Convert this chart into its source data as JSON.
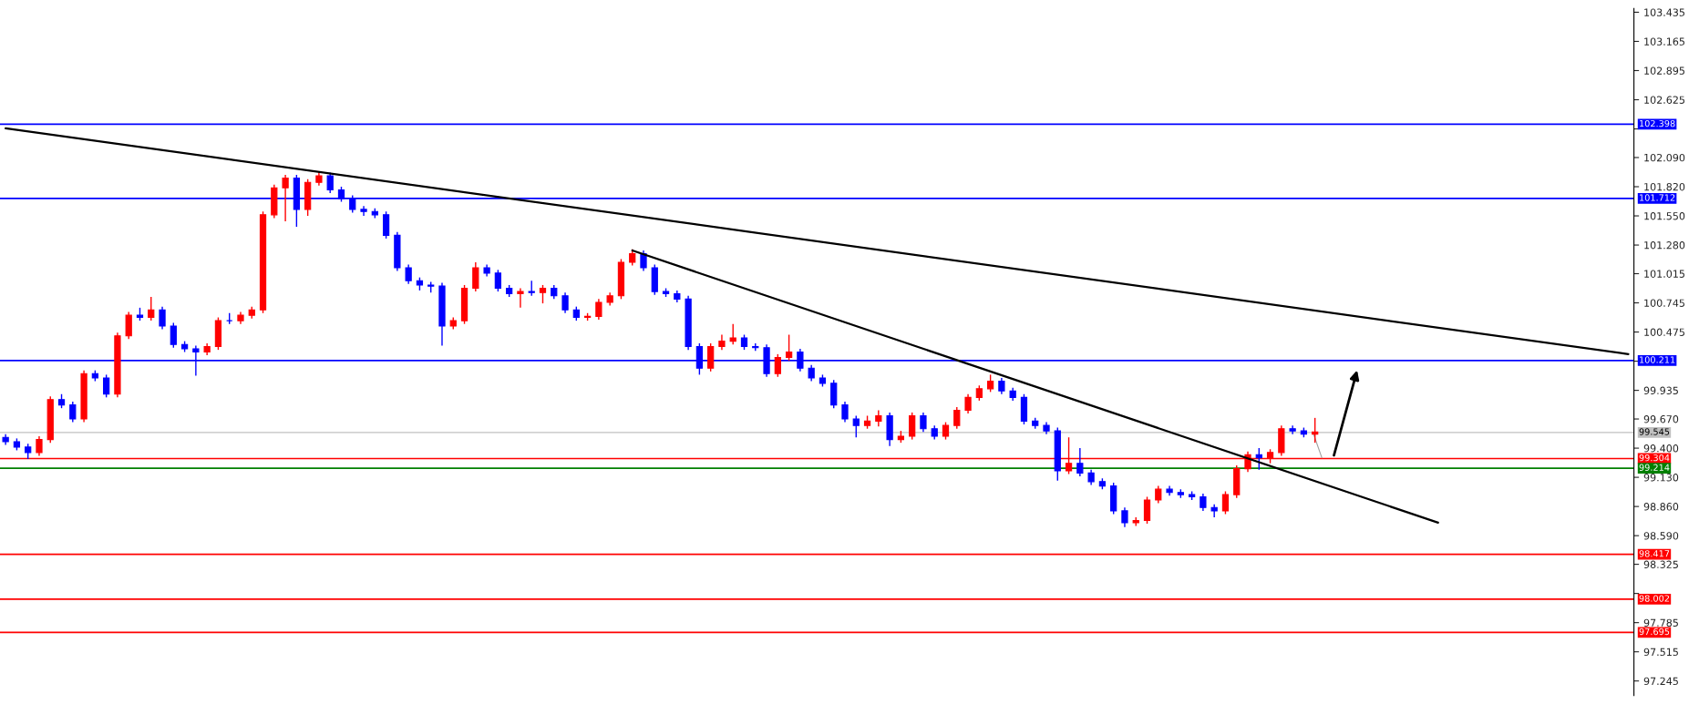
{
  "chart_data": {
    "type": "candlestick",
    "categories": [
      null,
      null,
      null,
      null,
      null,
      null,
      null,
      null,
      null,
      null,
      null,
      null,
      null,
      null,
      null,
      null,
      null,
      null,
      null,
      null,
      null,
      null,
      null,
      null,
      null,
      null,
      null,
      null,
      null,
      null,
      null,
      null,
      null,
      null,
      null,
      null,
      null,
      null,
      null,
      null,
      null,
      null,
      null,
      null,
      null,
      null,
      null,
      null,
      null,
      null,
      null,
      null,
      null,
      null,
      null,
      null,
      null,
      null,
      null,
      null,
      null,
      null,
      null,
      null,
      null,
      null,
      null,
      null,
      null,
      null,
      null,
      null,
      null,
      null,
      null,
      null,
      null,
      null,
      null,
      null,
      null,
      null,
      null,
      null,
      null,
      null,
      null,
      null,
      null,
      null,
      null,
      null,
      null,
      null,
      null,
      null,
      null,
      null,
      null,
      null,
      null,
      null,
      null,
      null,
      null,
      null,
      null,
      null,
      null,
      null,
      null,
      null,
      null,
      null,
      null,
      null,
      null,
      null,
      null,
      null,
      null,
      null,
      null,
      null,
      null,
      null,
      null,
      null,
      null,
      null,
      null,
      null,
      null,
      null,
      null,
      null,
      null,
      null,
      null,
      null,
      null,
      null,
      null,
      null,
      null,
      null
    ],
    "ohlc": [
      [
        99.5,
        99.53,
        99.43,
        99.46
      ],
      [
        99.46,
        99.49,
        99.38,
        99.41
      ],
      [
        99.41,
        99.44,
        99.3,
        99.36
      ],
      [
        99.36,
        99.51,
        99.33,
        99.48
      ],
      [
        99.48,
        99.88,
        99.45,
        99.85
      ],
      [
        99.85,
        99.9,
        99.77,
        99.8
      ],
      [
        99.8,
        99.83,
        99.64,
        99.67
      ],
      [
        99.67,
        100.12,
        99.64,
        100.09
      ],
      [
        100.09,
        100.12,
        100.02,
        100.05
      ],
      [
        100.05,
        100.08,
        99.87,
        99.9
      ],
      [
        99.9,
        100.47,
        99.87,
        100.44
      ],
      [
        100.44,
        100.66,
        100.41,
        100.63
      ],
      [
        100.63,
        100.7,
        100.58,
        100.61
      ],
      [
        100.61,
        100.8,
        100.58,
        100.68
      ],
      [
        100.68,
        100.71,
        100.5,
        100.53
      ],
      [
        100.53,
        100.56,
        100.33,
        100.36
      ],
      [
        100.36,
        100.39,
        100.29,
        100.32
      ],
      [
        100.32,
        100.35,
        100.07,
        100.29
      ],
      [
        100.29,
        100.37,
        100.26,
        100.34
      ],
      [
        100.34,
        100.61,
        100.31,
        100.58
      ],
      [
        100.58,
        100.65,
        100.55,
        100.58
      ],
      [
        100.58,
        100.66,
        100.55,
        100.63
      ],
      [
        100.63,
        100.71,
        100.6,
        100.68
      ],
      [
        100.68,
        101.59,
        100.65,
        101.56
      ],
      [
        101.56,
        101.84,
        101.53,
        101.81
      ],
      [
        101.81,
        101.93,
        101.5,
        101.9
      ],
      [
        101.9,
        101.93,
        101.45,
        101.61
      ],
      [
        101.61,
        101.89,
        101.55,
        101.86
      ],
      [
        101.86,
        101.96,
        101.83,
        101.92
      ],
      [
        101.92,
        101.95,
        101.76,
        101.79
      ],
      [
        101.79,
        101.82,
        101.68,
        101.71
      ],
      [
        101.71,
        101.74,
        101.58,
        101.61
      ],
      [
        101.61,
        101.64,
        101.55,
        101.59
      ],
      [
        101.59,
        101.62,
        101.53,
        101.56
      ],
      [
        101.56,
        101.59,
        101.34,
        101.37
      ],
      [
        101.37,
        101.4,
        101.04,
        101.07
      ],
      [
        101.07,
        101.1,
        100.92,
        100.95
      ],
      [
        100.95,
        100.98,
        100.86,
        100.91
      ],
      [
        100.91,
        100.94,
        100.84,
        100.9
      ],
      [
        100.9,
        100.93,
        100.35,
        100.53
      ],
      [
        100.53,
        100.61,
        100.5,
        100.58
      ],
      [
        100.58,
        100.91,
        100.55,
        100.88
      ],
      [
        100.88,
        101.12,
        100.85,
        101.07
      ],
      [
        101.07,
        101.1,
        100.99,
        101.02
      ],
      [
        101.02,
        101.05,
        100.85,
        100.88
      ],
      [
        100.88,
        100.91,
        100.8,
        100.83
      ],
      [
        100.83,
        100.88,
        100.7,
        100.85
      ],
      [
        100.85,
        100.95,
        100.81,
        100.84
      ],
      [
        100.84,
        100.91,
        100.74,
        100.88
      ],
      [
        100.88,
        100.91,
        100.78,
        100.81
      ],
      [
        100.81,
        100.84,
        100.65,
        100.68
      ],
      [
        100.68,
        100.71,
        100.58,
        100.61
      ],
      [
        100.61,
        100.65,
        100.58,
        100.62
      ],
      [
        100.62,
        100.78,
        100.59,
        100.75
      ],
      [
        100.75,
        100.84,
        100.72,
        100.81
      ],
      [
        100.81,
        101.15,
        100.78,
        101.12
      ],
      [
        101.12,
        101.24,
        101.09,
        101.2
      ],
      [
        101.2,
        101.23,
        101.04,
        101.07
      ],
      [
        101.07,
        101.1,
        100.82,
        100.85
      ],
      [
        100.85,
        100.88,
        100.8,
        100.83
      ],
      [
        100.83,
        100.86,
        100.75,
        100.78
      ],
      [
        100.78,
        100.81,
        100.31,
        100.34
      ],
      [
        100.34,
        100.37,
        100.08,
        100.14
      ],
      [
        100.14,
        100.37,
        100.11,
        100.34
      ],
      [
        100.34,
        100.45,
        100.31,
        100.39
      ],
      [
        100.39,
        100.55,
        100.36,
        100.42
      ],
      [
        100.42,
        100.45,
        100.31,
        100.34
      ],
      [
        100.34,
        100.37,
        100.3,
        100.33
      ],
      [
        100.33,
        100.36,
        100.06,
        100.09
      ],
      [
        100.09,
        100.27,
        100.06,
        100.24
      ],
      [
        100.24,
        100.45,
        100.21,
        100.29
      ],
      [
        100.29,
        100.32,
        100.11,
        100.14
      ],
      [
        100.14,
        100.17,
        100.02,
        100.05
      ],
      [
        100.05,
        100.08,
        99.97,
        100.0
      ],
      [
        100.0,
        100.03,
        99.77,
        99.8
      ],
      [
        99.8,
        99.83,
        99.64,
        99.67
      ],
      [
        99.67,
        99.7,
        99.5,
        99.61
      ],
      [
        99.61,
        99.7,
        99.58,
        99.65
      ],
      [
        99.65,
        99.75,
        99.6,
        99.7
      ],
      [
        99.7,
        99.73,
        99.42,
        99.48
      ],
      [
        99.48,
        99.56,
        99.45,
        99.51
      ],
      [
        99.51,
        99.73,
        99.48,
        99.7
      ],
      [
        99.7,
        99.73,
        99.55,
        99.58
      ],
      [
        99.58,
        99.61,
        99.48,
        99.51
      ],
      [
        99.51,
        99.64,
        99.48,
        99.61
      ],
      [
        99.61,
        99.78,
        99.58,
        99.75
      ],
      [
        99.75,
        99.9,
        99.72,
        99.87
      ],
      [
        99.87,
        99.98,
        99.84,
        99.95
      ],
      [
        99.95,
        100.08,
        99.92,
        100.02
      ],
      [
        100.02,
        100.05,
        99.9,
        99.93
      ],
      [
        99.93,
        99.96,
        99.84,
        99.87
      ],
      [
        99.87,
        99.9,
        99.62,
        99.65
      ],
      [
        99.65,
        99.68,
        99.58,
        99.61
      ],
      [
        99.61,
        99.64,
        99.53,
        99.56
      ],
      [
        99.56,
        99.59,
        99.1,
        99.19
      ],
      [
        99.19,
        99.5,
        99.16,
        99.26
      ],
      [
        99.26,
        99.4,
        99.14,
        99.17
      ],
      [
        99.17,
        99.2,
        99.06,
        99.09
      ],
      [
        99.09,
        99.12,
        99.02,
        99.05
      ],
      [
        99.05,
        99.08,
        98.79,
        98.82
      ],
      [
        98.82,
        98.85,
        98.67,
        98.71
      ],
      [
        98.71,
        98.76,
        98.68,
        98.73
      ],
      [
        98.73,
        98.95,
        98.7,
        98.92
      ],
      [
        98.92,
        99.05,
        98.89,
        99.02
      ],
      [
        99.02,
        99.05,
        98.96,
        98.99
      ],
      [
        98.99,
        99.02,
        98.94,
        98.97
      ],
      [
        98.97,
        99.0,
        98.92,
        98.95
      ],
      [
        98.95,
        98.98,
        98.82,
        98.85
      ],
      [
        98.85,
        98.88,
        98.76,
        98.82
      ],
      [
        98.82,
        99.0,
        98.79,
        98.97
      ],
      [
        98.97,
        99.24,
        98.94,
        99.21
      ],
      [
        99.21,
        99.37,
        99.18,
        99.34
      ],
      [
        99.34,
        99.4,
        99.2,
        99.31
      ],
      [
        99.31,
        99.39,
        99.26,
        99.36
      ],
      [
        99.36,
        99.61,
        99.33,
        99.58
      ],
      [
        99.58,
        99.61,
        99.53,
        99.56
      ],
      [
        99.56,
        99.59,
        99.5,
        99.53
      ],
      [
        99.53,
        99.68,
        99.45,
        99.55
      ],
      null,
      null,
      null,
      null,
      null,
      null,
      null,
      null,
      null,
      null,
      null,
      null,
      null,
      null,
      null,
      null,
      null,
      null,
      null,
      null,
      null,
      null,
      null,
      null,
      null,
      null,
      null,
      null
    ],
    "colors": [
      "#0000ff",
      "#0000ff",
      "#0000ff",
      "#ff0000",
      "#ff0000",
      "#0000ff",
      "#0000ff",
      "#ff0000",
      "#0000ff",
      "#0000ff",
      "#ff0000",
      "#ff0000",
      "#0000ff",
      "#ff0000",
      "#0000ff",
      "#0000ff",
      "#0000ff",
      "#0000ff",
      "#ff0000",
      "#ff0000",
      "#0000ff",
      "#ff0000",
      "#ff0000",
      "#ff0000",
      "#ff0000",
      "#ff0000",
      "#0000ff",
      "#ff0000",
      "#ff0000",
      "#0000ff",
      "#0000ff",
      "#0000ff",
      "#0000ff",
      "#0000ff",
      "#0000ff",
      "#0000ff",
      "#0000ff",
      "#0000ff",
      "#0000ff",
      "#0000ff",
      "#ff0000",
      "#ff0000",
      "#ff0000",
      "#0000ff",
      "#0000ff",
      "#0000ff",
      "#ff0000",
      "#0000ff",
      "#ff0000",
      "#0000ff",
      "#0000ff",
      "#0000ff",
      "#ff0000",
      "#ff0000",
      "#ff0000",
      "#ff0000",
      "#ff0000",
      "#0000ff",
      "#0000ff",
      "#0000ff",
      "#0000ff",
      "#0000ff",
      "#0000ff",
      "#ff0000",
      "#ff0000",
      "#ff0000",
      "#0000ff",
      "#0000ff",
      "#0000ff",
      "#ff0000",
      "#ff0000",
      "#0000ff",
      "#0000ff",
      "#0000ff",
      "#0000ff",
      "#0000ff",
      "#0000ff",
      "#ff0000",
      "#ff0000",
      "#0000ff",
      "#ff0000",
      "#ff0000",
      "#0000ff",
      "#0000ff",
      "#ff0000",
      "#ff0000",
      "#ff0000",
      "#ff0000",
      "#ff0000",
      "#0000ff",
      "#0000ff",
      "#0000ff",
      "#0000ff",
      "#0000ff",
      "#0000ff",
      "#ff0000",
      "#0000ff",
      "#0000ff",
      "#0000ff",
      "#0000ff",
      "#0000ff",
      "#ff0000",
      "#ff0000",
      "#ff0000",
      "#0000ff",
      "#0000ff",
      "#0000ff",
      "#0000ff",
      "#0000ff",
      "#ff0000",
      "#ff0000",
      "#ff0000",
      "#0000ff",
      "#ff0000",
      "#ff0000",
      "#0000ff",
      "#0000ff",
      "#ff0000",
      null,
      null,
      null,
      null,
      null,
      null,
      null,
      null,
      null,
      null,
      null,
      null,
      null,
      null,
      null,
      null,
      null,
      null,
      null,
      null,
      null,
      null,
      null,
      null,
      null,
      null,
      null,
      null
    ],
    "series": [
      {
        "type": "line",
        "color": "#000000",
        "values": [
          102.36,
          null,
          null,
          null,
          null,
          null,
          null,
          null,
          null,
          null,
          null,
          null,
          null,
          null,
          null,
          null,
          null,
          null,
          null,
          null,
          null,
          null,
          null,
          null,
          null,
          null,
          null,
          null,
          null,
          null,
          null,
          null,
          null,
          null,
          null,
          null,
          null,
          null,
          null,
          null,
          null,
          null,
          null,
          null,
          null,
          null,
          null,
          null,
          null,
          null,
          null,
          null,
          null,
          null,
          null,
          null,
          null,
          null,
          null,
          null,
          null,
          null,
          null,
          null,
          null,
          null,
          null,
          null,
          null,
          null,
          null,
          null,
          null,
          null,
          null,
          null,
          null,
          null,
          null,
          null,
          null,
          null,
          null,
          null,
          null,
          null,
          null,
          null,
          null,
          null,
          null,
          null,
          null,
          null,
          null,
          null,
          null,
          null,
          null,
          null,
          null,
          null,
          null,
          null,
          null,
          null,
          null,
          null,
          null,
          null,
          null,
          null,
          null,
          null,
          null,
          null,
          null,
          null,
          null,
          null,
          null,
          null,
          null,
          null,
          null,
          null,
          null,
          null,
          null,
          null,
          null,
          null,
          null,
          null,
          null,
          null,
          null,
          null,
          null,
          null,
          null,
          null,
          null,
          null,
          null,
          100.27
        ]
      },
      {
        "type": "line",
        "color": "#000000",
        "values": [
          null,
          null,
          null,
          null,
          null,
          null,
          null,
          null,
          null,
          null,
          null,
          null,
          null,
          null,
          null,
          null,
          null,
          null,
          null,
          null,
          null,
          null,
          null,
          null,
          null,
          null,
          null,
          null,
          null,
          null,
          null,
          null,
          null,
          null,
          null,
          null,
          null,
          null,
          null,
          null,
          null,
          null,
          null,
          null,
          null,
          null,
          null,
          null,
          null,
          null,
          null,
          null,
          null,
          null,
          null,
          null,
          101.23,
          null,
          null,
          null,
          null,
          null,
          null,
          null,
          null,
          null,
          null,
          null,
          null,
          null,
          null,
          null,
          null,
          null,
          null,
          null,
          null,
          null,
          null,
          null,
          null,
          null,
          null,
          null,
          null,
          null,
          null,
          null,
          null,
          null,
          null,
          null,
          null,
          null,
          null,
          null,
          null,
          null,
          null,
          null,
          null,
          null,
          null,
          null,
          null,
          null,
          null,
          null,
          null,
          null,
          null,
          null,
          null,
          null,
          null,
          null,
          null,
          null,
          null,
          null,
          null,
          null,
          null,
          null,
          null,
          null,
          null,
          null,
          98.71,
          null,
          null,
          null,
          null,
          null,
          null,
          null,
          null,
          null,
          null,
          null,
          null,
          null,
          null,
          null,
          null,
          null
        ]
      }
    ],
    "ylim": [
      97.11,
      103.47
    ],
    "yticks": [
      103.435,
      103.165,
      102.895,
      102.625,
      {
        "value": 102.355,
        "label": null
      },
      {
        "value": 102.09,
        "label": "102.090"
      },
      {
        "value": 101.82,
        "label": "101.820"
      },
      {
        "value": 101.55,
        "label": "101.550"
      },
      {
        "value": 101.28,
        "label": "101.280"
      },
      101.015,
      100.745,
      100.475,
      {
        "value": 100.205,
        "label": null
      },
      99.935,
      {
        "value": 99.67,
        "label": "99.670"
      },
      {
        "value": 99.4,
        "label": "99.400"
      },
      {
        "value": 99.13,
        "label": "99.130"
      },
      {
        "value": 98.86,
        "label": "98.860"
      },
      {
        "value": 98.59,
        "label": "98.590"
      },
      98.325,
      {
        "value": 98.055,
        "label": null
      },
      97.785,
      97.515,
      97.245
    ],
    "tick_labels": "y",
    "grid": false,
    "legend": false,
    "ref_lines": [
      {
        "axis": "y",
        "value": 102.398,
        "label": "102.398",
        "color": "#0000ff"
      },
      {
        "axis": "y",
        "value": 101.712,
        "label": "101.712",
        "color": "#0000ff"
      },
      {
        "axis": "y",
        "value": 100.211,
        "label": "100.211",
        "color": "#0000ff"
      },
      {
        "axis": "y",
        "value": 99.545,
        "label": "99.545",
        "color": "#c0c0c0"
      },
      {
        "axis": "y",
        "value": 99.304,
        "label": "99.304",
        "color": "#ff0000"
      },
      {
        "axis": "y",
        "value": 99.214,
        "label": "99.214",
        "color": "#008000"
      },
      {
        "axis": "y",
        "value": 98.417,
        "label": "98.417",
        "color": "#ff0000"
      },
      {
        "axis": "y",
        "value": 98.002,
        "label": "98.002",
        "color": "#ff0000"
      },
      {
        "axis": "y",
        "value": 97.695,
        "label": "97.695",
        "color": "#ff0000"
      }
    ]
  }
}
